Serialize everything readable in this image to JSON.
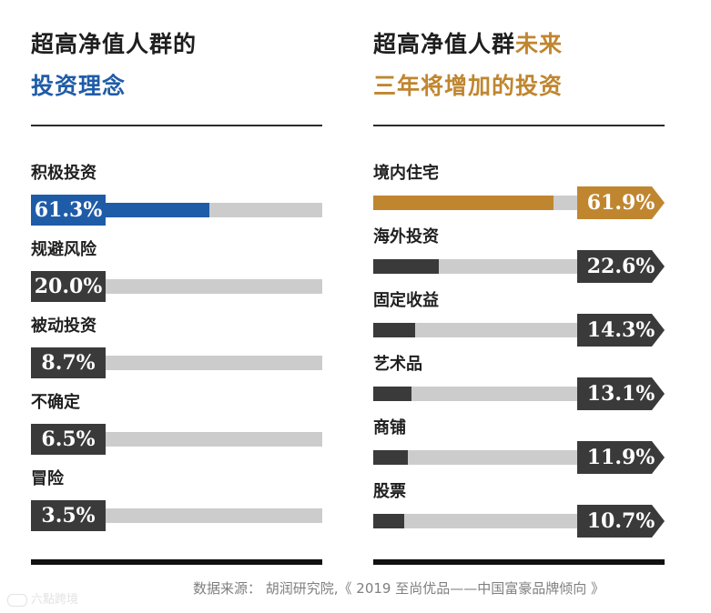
{
  "colors": {
    "blue": "#1f5ca8",
    "gold": "#c0862f",
    "dark": "#3a3a3a",
    "track": "#cccccc"
  },
  "left": {
    "title_line1": "超高净值人群的",
    "title_line2": "投资理念"
  },
  "right": {
    "title_line1_a": "超高净值人群",
    "title_line1_b": "未来",
    "title_line2": "三年将增加的投资"
  },
  "chart_data": [
    {
      "type": "bar",
      "orientation": "horizontal",
      "title": "超高净值人群的投资理念",
      "categories": [
        "积极投资",
        "规避风险",
        "被动投资",
        "不确定",
        "冒险"
      ],
      "values": [
        61.3,
        20.0,
        8.7,
        6.5,
        3.5
      ],
      "value_labels": [
        "61.3%",
        "20.0%",
        "8.7%",
        "6.5%",
        "3.5%"
      ],
      "unit": "%",
      "xlim": [
        0,
        100
      ],
      "highlight_index": 0
    },
    {
      "type": "bar",
      "orientation": "horizontal",
      "title": "超高净值人群未来三年将增加的投资",
      "categories": [
        "境内住宅",
        "海外投资",
        "固定收益",
        "艺术品",
        "商铺",
        "股票"
      ],
      "values": [
        61.9,
        22.6,
        14.3,
        13.1,
        11.9,
        10.7
      ],
      "value_labels": [
        "61.9%",
        "22.6%",
        "14.3%",
        "13.1%",
        "11.9%",
        "10.7%"
      ],
      "unit": "%",
      "xlim": [
        0,
        100
      ],
      "highlight_index": 0
    }
  ],
  "source": "数据来源： 胡润研究院,《 2019 至尚优品——中国富豪品牌倾向 》",
  "watermark": "六點跨境"
}
